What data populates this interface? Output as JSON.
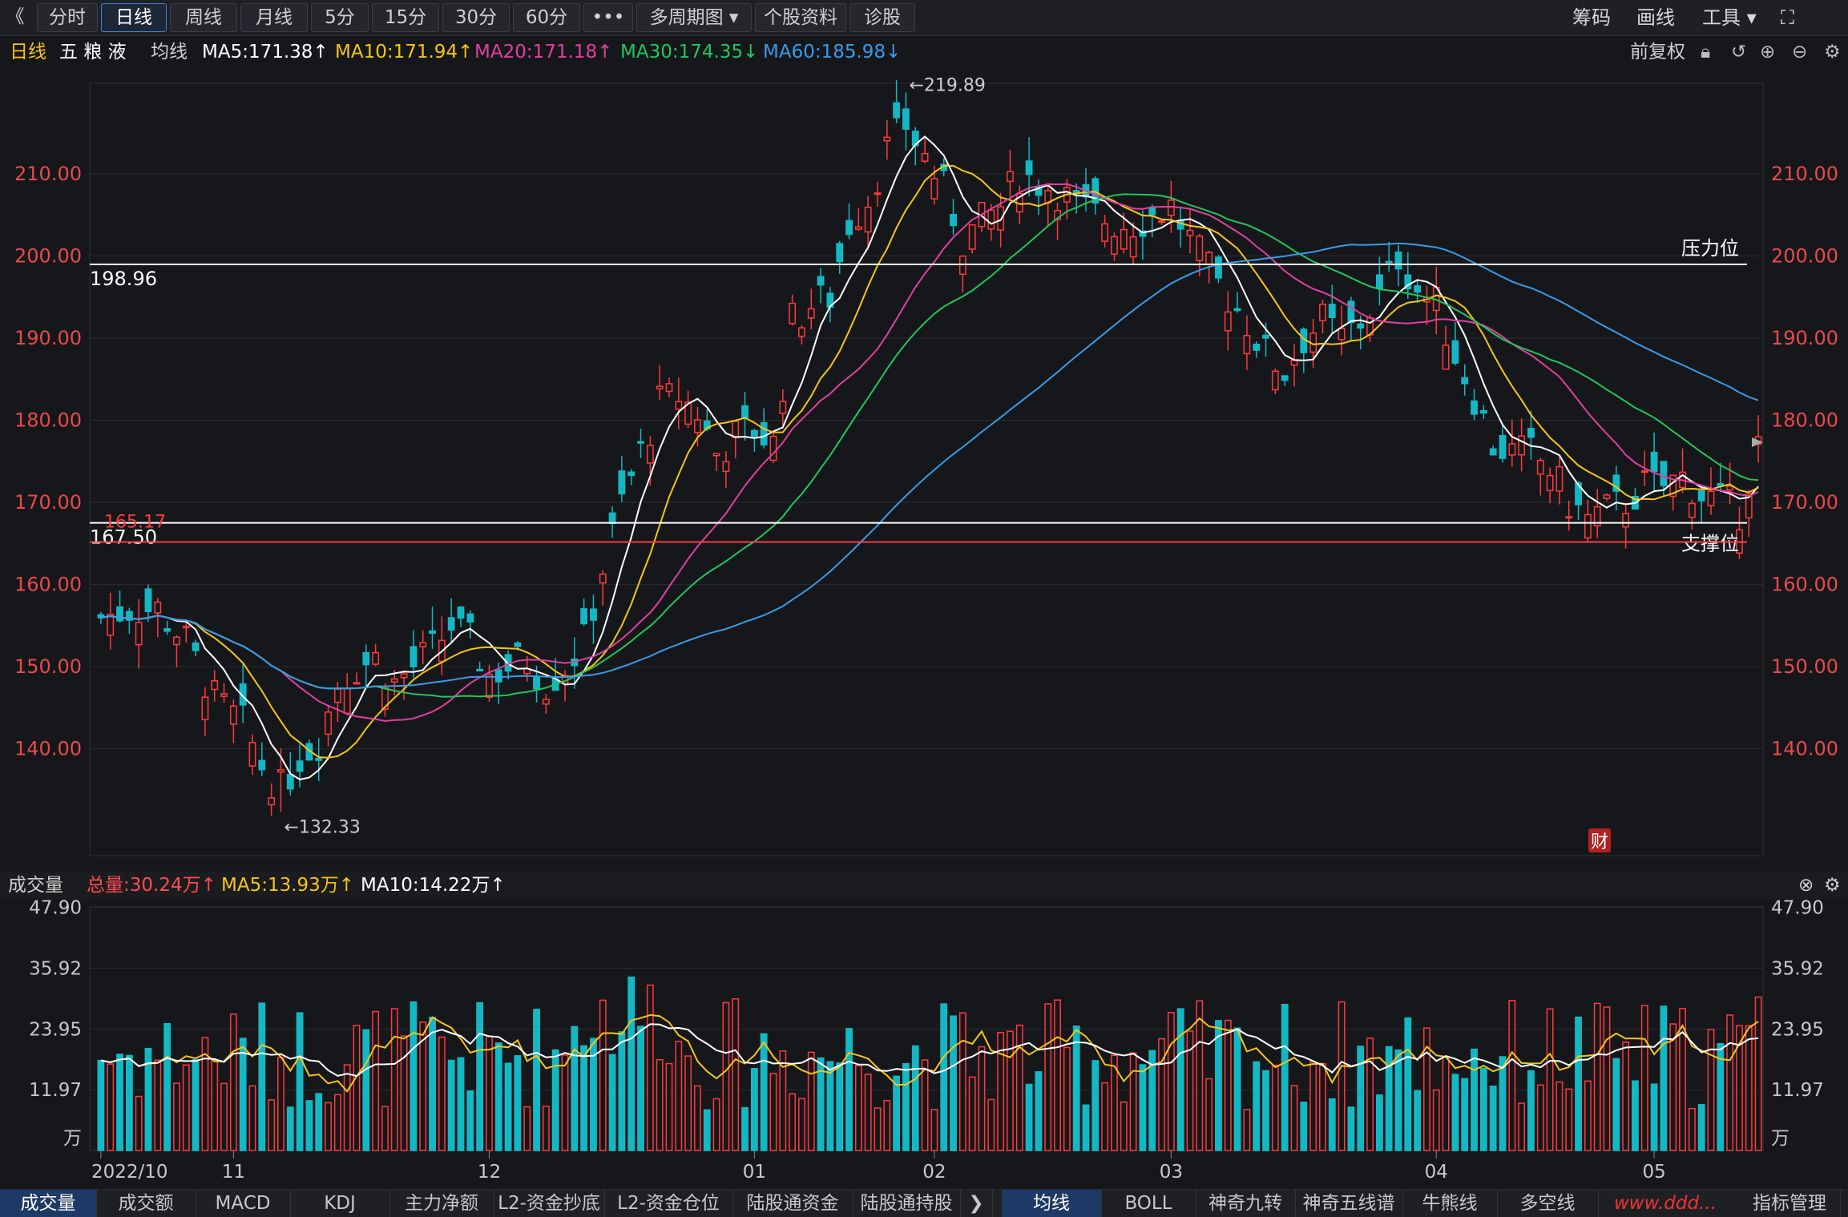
{
  "toolbar": {
    "back_glyph": "《",
    "periods": [
      "分时",
      "日线",
      "周线",
      "月线",
      "5分",
      "15分",
      "30分",
      "60分",
      "•••",
      "多周期图 ▾",
      "个股资料",
      "诊股"
    ],
    "active_period": 1,
    "right": {
      "chips": "筹码",
      "draw": "画线",
      "tools": "工具 ▾",
      "fullscreen": "⛶"
    }
  },
  "legend": {
    "period": "日线",
    "stock": "五 粮 液",
    "ma_label": "均线",
    "ma5": "MA5:171.38↑",
    "ma10": "MA10:171.94↑",
    "ma20": "MA20:171.18↑",
    "ma30": "MA30:174.35↓",
    "ma60": "MA60:185.98↓",
    "adjust": "前复权",
    "colors": {
      "ma5": "#ffffff",
      "ma10": "#f5c518",
      "ma20": "#e040a0",
      "ma30": "#22c55e",
      "ma60": "#3b9ae8"
    }
  },
  "price_axis": {
    "ticks": [
      "210.00",
      "200.00",
      "190.00",
      "180.00",
      "170.00",
      "160.00",
      "150.00",
      "140.00"
    ],
    "tick_values": [
      210,
      200,
      190,
      180,
      170,
      160,
      150,
      140
    ],
    "range": [
      127,
      221
    ]
  },
  "annotations": {
    "high_label": "←219.89",
    "high_value": 219.89,
    "low_label": "←132.33",
    "low_value": 132.33,
    "line1_value": 198.96,
    "line1_label": "198.96",
    "line1_right": "压力位",
    "line2_value": 167.5,
    "line2_label": "167.50",
    "line2_right": "支撑位",
    "line3_value": 165.17,
    "line3_label": "165.17",
    "cai": "财"
  },
  "volume": {
    "title": "成交量",
    "total": "总量:30.24万↑",
    "ma5": "MA5:13.93万↑",
    "ma10": "MA10:14.22万↑",
    "ticks": [
      "47.90",
      "35.92",
      "23.95",
      "11.97",
      "万"
    ],
    "tick_values": [
      47.9,
      35.92,
      23.95,
      11.97
    ],
    "range": [
      0,
      48
    ]
  },
  "x_axis": {
    "labels": [
      {
        "text": "2022/10",
        "idx": 0
      },
      {
        "text": "11",
        "idx": 14
      },
      {
        "text": "12",
        "idx": 41
      },
      {
        "text": "01",
        "idx": 69
      },
      {
        "text": "02",
        "idx": 88
      },
      {
        "text": "03",
        "idx": 113
      },
      {
        "text": "04",
        "idx": 141
      },
      {
        "text": "05",
        "idx": 164
      }
    ]
  },
  "bottom_tabs": {
    "left": [
      "成交量",
      "成交额",
      "MACD",
      "KDJ",
      "主力净额",
      "L2-资金抄底",
      "L2-资金仓位",
      "陆股通资金",
      "陆股通持股"
    ],
    "right": [
      "均线",
      "BOLL",
      "神奇九转",
      "神奇五线谱",
      "牛熊线",
      "多空线"
    ],
    "far_right": "指标管理",
    "watermark": "www.ddd..."
  },
  "chart_data": {
    "type": "candlestick",
    "title": "五粮液 日线",
    "close_points": [
      [
        0,
        156
      ],
      [
        3,
        157
      ],
      [
        6,
        157
      ],
      [
        9,
        153
      ],
      [
        12,
        146
      ],
      [
        15,
        143
      ],
      [
        17,
        138
      ],
      [
        19,
        135
      ],
      [
        21,
        139
      ],
      [
        23,
        141
      ],
      [
        25,
        148
      ],
      [
        27,
        150
      ],
      [
        29,
        151
      ],
      [
        31,
        148
      ],
      [
        33,
        150
      ],
      [
        35,
        152
      ],
      [
        37,
        155
      ],
      [
        39,
        153
      ],
      [
        41,
        149
      ],
      [
        43,
        150
      ],
      [
        45,
        151
      ],
      [
        47,
        148
      ],
      [
        49,
        150
      ],
      [
        51,
        153
      ],
      [
        53,
        162
      ],
      [
        55,
        170
      ],
      [
        57,
        176
      ],
      [
        59,
        182
      ],
      [
        61,
        183
      ],
      [
        63,
        181
      ],
      [
        65,
        176
      ],
      [
        67,
        178
      ],
      [
        69,
        179
      ],
      [
        71,
        177
      ],
      [
        73,
        192
      ],
      [
        75,
        194
      ],
      [
        77,
        195
      ],
      [
        79,
        204
      ],
      [
        81,
        207
      ],
      [
        83,
        213
      ],
      [
        85,
        216
      ],
      [
        87,
        212
      ],
      [
        89,
        208
      ],
      [
        91,
        202
      ],
      [
        93,
        204
      ],
      [
        95,
        206
      ],
      [
        97,
        210
      ],
      [
        99,
        209
      ],
      [
        101,
        208
      ],
      [
        103,
        206
      ],
      [
        105,
        205
      ],
      [
        107,
        204
      ],
      [
        109,
        204
      ],
      [
        111,
        205
      ],
      [
        113,
        206
      ],
      [
        115,
        202
      ],
      [
        117,
        198
      ],
      [
        119,
        195
      ],
      [
        121,
        192
      ],
      [
        123,
        188
      ],
      [
        125,
        186
      ],
      [
        127,
        190
      ],
      [
        129,
        192
      ],
      [
        131,
        190
      ],
      [
        133,
        192
      ],
      [
        135,
        195
      ],
      [
        137,
        200
      ],
      [
        139,
        196
      ],
      [
        141,
        194
      ],
      [
        143,
        188
      ],
      [
        145,
        183
      ],
      [
        147,
        177
      ],
      [
        149,
        176
      ],
      [
        151,
        176
      ],
      [
        153,
        174
      ],
      [
        155,
        170
      ],
      [
        157,
        168
      ],
      [
        159,
        169
      ],
      [
        161,
        170
      ],
      [
        163,
        172
      ],
      [
        165,
        172
      ],
      [
        167,
        173
      ],
      [
        169,
        171
      ],
      [
        171,
        170
      ],
      [
        173,
        169
      ],
      [
        175,
        177
      ]
    ]
  }
}
